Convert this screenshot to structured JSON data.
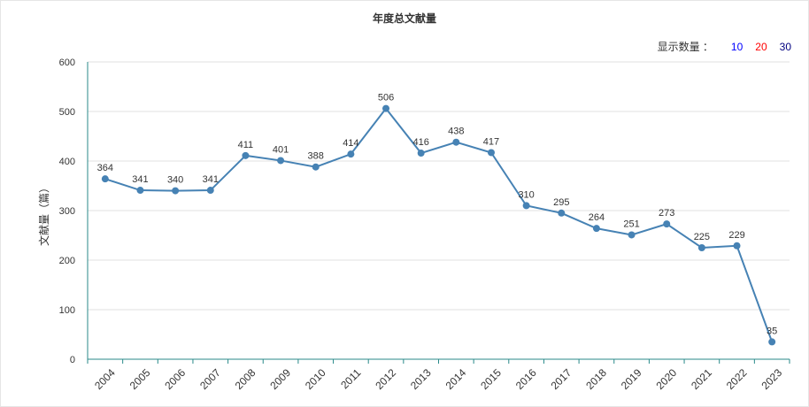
{
  "chart_data": {
    "type": "line",
    "title": "年度总文献量",
    "ylabel": "文献量（篇）",
    "xlabel": "",
    "ylim": [
      0,
      600
    ],
    "yticks": [
      0,
      100,
      200,
      300,
      400,
      500,
      600
    ],
    "categories": [
      "2004",
      "2005",
      "2006",
      "2007",
      "2008",
      "2009",
      "2010",
      "2011",
      "2012",
      "2013",
      "2014",
      "2015",
      "2016",
      "2017",
      "2018",
      "2019",
      "2020",
      "2021",
      "2022",
      "2023"
    ],
    "series": [
      {
        "values": [
          364,
          341,
          340,
          341,
          411,
          401,
          388,
          414,
          506,
          416,
          438,
          417,
          310,
          295,
          264,
          251,
          273,
          225,
          229,
          35
        ]
      }
    ],
    "line_color": "#4682b4",
    "grid": "horizontal",
    "data_labels": true
  },
  "count_control": {
    "label": "显示数量 ：",
    "options": [
      {
        "text": "10",
        "color": "#0000ff"
      },
      {
        "text": "20",
        "color": "#ff0000"
      },
      {
        "text": "30",
        "color": "#000080"
      }
    ]
  }
}
